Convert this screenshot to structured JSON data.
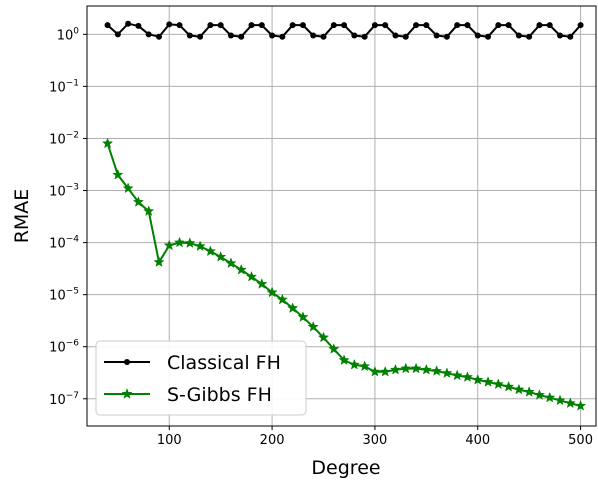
{
  "chart_data": {
    "type": "line",
    "xlabel": "Degree",
    "ylabel": "RMAE",
    "yscale": "log",
    "xlim": [
      20,
      515
    ],
    "ylim": [
      3e-08,
      3.5
    ],
    "grid": true,
    "legend_position": "bottom-left",
    "x_ticks": [
      100,
      200,
      300,
      400,
      500
    ],
    "x_tick_labels": [
      "100",
      "200",
      "300",
      "400",
      "500"
    ],
    "y_ticks": [
      {
        "value": 1,
        "base": "10",
        "exp": "0"
      },
      {
        "value": 0.1,
        "base": "10",
        "exp": "−1"
      },
      {
        "value": 0.01,
        "base": "10",
        "exp": "−2"
      },
      {
        "value": 0.001,
        "base": "10",
        "exp": "−3"
      },
      {
        "value": 0.0001,
        "base": "10",
        "exp": "−4"
      },
      {
        "value": 1e-05,
        "base": "10",
        "exp": "−5"
      },
      {
        "value": 1e-06,
        "base": "10",
        "exp": "−6"
      },
      {
        "value": 1e-07,
        "base": "10",
        "exp": "−7"
      }
    ],
    "x": [
      40,
      50,
      60,
      70,
      80,
      90,
      100,
      110,
      120,
      130,
      140,
      150,
      160,
      170,
      180,
      190,
      200,
      210,
      220,
      230,
      240,
      250,
      260,
      270,
      280,
      290,
      300,
      310,
      320,
      330,
      340,
      350,
      360,
      370,
      380,
      390,
      400,
      410,
      420,
      430,
      440,
      450,
      460,
      470,
      480,
      490,
      500
    ],
    "series": [
      {
        "name": "Classical FH",
        "color": "#000000",
        "marker": "circle",
        "values": [
          1.5,
          1.0,
          1.6,
          1.45,
          1.0,
          0.9,
          1.55,
          1.5,
          0.95,
          0.9,
          1.5,
          1.5,
          0.95,
          0.9,
          1.5,
          1.5,
          0.95,
          0.9,
          1.5,
          1.5,
          0.95,
          0.9,
          1.5,
          1.5,
          0.95,
          0.9,
          1.5,
          1.5,
          0.95,
          0.9,
          1.5,
          1.5,
          0.95,
          0.9,
          1.5,
          1.5,
          0.95,
          0.9,
          1.5,
          1.5,
          0.95,
          0.9,
          1.5,
          1.5,
          0.95,
          0.9,
          1.5
        ]
      },
      {
        "name": "S-Gibbs FH",
        "color": "#008000",
        "marker": "star",
        "values": [
          0.008,
          0.002,
          0.0011,
          0.0006,
          0.0004,
          4.2e-05,
          8.8e-05,
          0.0001,
          9.75e-05,
          8.5e-05,
          6.8e-05,
          5.3e-05,
          4e-05,
          3e-05,
          2.2e-05,
          1.6e-05,
          1.1e-05,
          8e-06,
          5.5e-06,
          3.7e-06,
          2.4e-06,
          1.5e-06,
          9e-07,
          5.5e-07,
          4.5e-07,
          4.2e-07,
          3.3e-07,
          3.3e-07,
          3.6e-07,
          3.8e-07,
          3.8e-07,
          3.6e-07,
          3.4e-07,
          3.1e-07,
          2.8e-07,
          2.6e-07,
          2.3e-07,
          2.1e-07,
          1.9e-07,
          1.7e-07,
          1.5e-07,
          1.35e-07,
          1.18e-07,
          1.05e-07,
          9.3e-08,
          8.2e-08,
          7.3e-08
        ]
      }
    ]
  }
}
